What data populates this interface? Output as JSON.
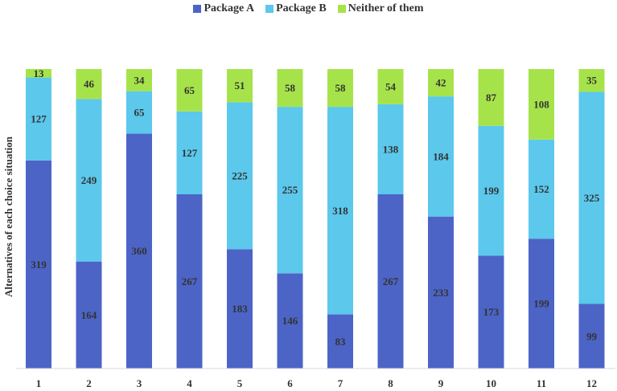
{
  "colors": {
    "package_a": "#4c64c6",
    "package_b": "#5bc8ec",
    "neither": "#a6e34a"
  },
  "chart_data": {
    "type": "bar",
    "stacked": true,
    "categories": [
      "1",
      "2",
      "3",
      "4",
      "5",
      "6",
      "7",
      "8",
      "9",
      "10",
      "11",
      "12"
    ],
    "series": [
      {
        "name": "Package A",
        "values": [
          319,
          164,
          360,
          267,
          183,
          146,
          83,
          267,
          233,
          173,
          199,
          99
        ]
      },
      {
        "name": "Package B",
        "values": [
          127,
          249,
          65,
          127,
          225,
          255,
          318,
          138,
          184,
          199,
          152,
          325
        ]
      },
      {
        "name": "Neither of them",
        "values": [
          13,
          46,
          34,
          65,
          51,
          58,
          58,
          54,
          42,
          87,
          108,
          35
        ]
      }
    ],
    "title": "",
    "xlabel": "",
    "ylabel": "Alternatives of each choice situation",
    "legend_position": "top-center",
    "grid": false
  }
}
